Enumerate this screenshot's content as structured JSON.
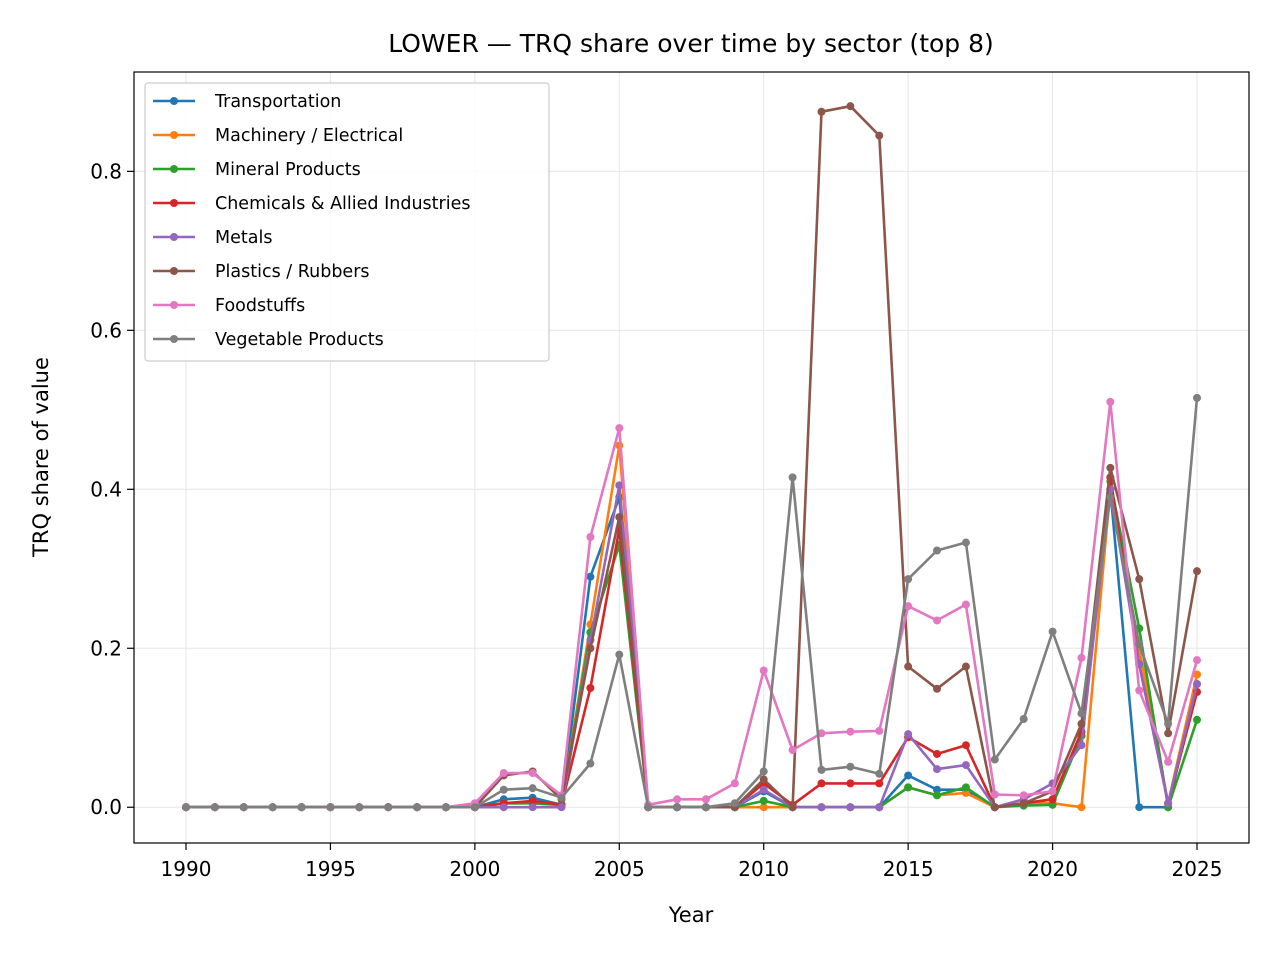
{
  "chart_data": {
    "type": "line",
    "title": "LOWER — TRQ share over time by sector (top 8)",
    "xlabel": "Year",
    "ylabel": "TRQ share of value",
    "xlim": [
      1988.2,
      1926.8
    ],
    "ylim": [
      -0.045,
      0.925
    ],
    "xticks": [
      1990,
      1995,
      2000,
      2005,
      2010,
      2015,
      2020,
      2025
    ],
    "xtick_labels": [
      "1990",
      "1995",
      "2000",
      "2005",
      "2010",
      "2015",
      "2020",
      "2025"
    ],
    "yticks": [
      0.0,
      0.2,
      0.4,
      0.6,
      0.8
    ],
    "ytick_labels": [
      "0.0",
      "0.2",
      "0.4",
      "0.6",
      "0.8"
    ],
    "grid": true,
    "legend_position": "top-left",
    "x": [
      1990,
      1991,
      1992,
      1993,
      1994,
      1995,
      1996,
      1997,
      1998,
      1999,
      2000,
      2001,
      2002,
      2003,
      2004,
      2005,
      2006,
      2007,
      2008,
      2009,
      2010,
      2011,
      2012,
      2013,
      2014,
      2015,
      2016,
      2017,
      2018,
      2019,
      2020,
      2021,
      2022,
      2023,
      2024,
      2025
    ],
    "series": [
      {
        "name": "Transportation",
        "color": "#1f77b4",
        "values": [
          0,
          0,
          0,
          0,
          0,
          0,
          0,
          0,
          0,
          0,
          0,
          0.01,
          0.012,
          0.003,
          0.29,
          0.39,
          0,
          0,
          0,
          0,
          0.02,
          0,
          0,
          0,
          0,
          0.04,
          0.022,
          0.022,
          0,
          0.005,
          0.01,
          0.09,
          0.4,
          0,
          0,
          0.155
        ]
      },
      {
        "name": "Machinery / Electrical",
        "color": "#ff7f0e",
        "values": [
          0,
          0,
          0,
          0,
          0,
          0,
          0,
          0,
          0,
          0,
          0,
          0.005,
          0.005,
          0.003,
          0.23,
          0.455,
          0,
          0,
          0,
          0,
          0,
          0,
          0,
          0,
          0,
          0.025,
          0.015,
          0.018,
          0,
          0.005,
          0.005,
          0,
          0.4,
          0.2,
          0.005,
          0.167
        ]
      },
      {
        "name": "Mineral Products",
        "color": "#2ca02c",
        "values": [
          0,
          0,
          0,
          0,
          0,
          0,
          0,
          0,
          0,
          0,
          0,
          0.005,
          0.005,
          0.003,
          0.22,
          0.33,
          0,
          0,
          0,
          0,
          0.008,
          0,
          0,
          0,
          0,
          0.025,
          0.015,
          0.025,
          0,
          0.002,
          0.003,
          0.09,
          0.41,
          0.225,
          0,
          0.11
        ]
      },
      {
        "name": "Chemicals & Allied Industries",
        "color": "#d62728",
        "values": [
          0,
          0,
          0,
          0,
          0,
          0,
          0,
          0,
          0,
          0,
          0,
          0.005,
          0.008,
          0.003,
          0.15,
          0.35,
          0,
          0,
          0,
          0,
          0.03,
          0.003,
          0.03,
          0.03,
          0.03,
          0.088,
          0.067,
          0.078,
          0,
          0.005,
          0.01,
          0.095,
          0.415,
          0.18,
          0.005,
          0.145
        ]
      },
      {
        "name": "Metals",
        "color": "#9467bd",
        "values": [
          0,
          0,
          0,
          0,
          0,
          0,
          0,
          0,
          0,
          0,
          0,
          0,
          0,
          0,
          0.21,
          0.405,
          0,
          0,
          0,
          0,
          0.022,
          0,
          0,
          0,
          0,
          0.092,
          0.048,
          0.053,
          0,
          0.01,
          0.03,
          0.078,
          0.4,
          0.18,
          0.005,
          0.155
        ]
      },
      {
        "name": "Plastics / Rubbers",
        "color": "#8c564b",
        "values": [
          0,
          0,
          0,
          0,
          0,
          0,
          0,
          0,
          0,
          0,
          0,
          0.04,
          0.045,
          0.01,
          0.2,
          0.365,
          0,
          0,
          0,
          0,
          0.035,
          0,
          0.875,
          0.882,
          0.845,
          0.177,
          0.149,
          0.177,
          0,
          0.005,
          0.02,
          0.105,
          0.427,
          0.287,
          0.093,
          0.297
        ]
      },
      {
        "name": "Foodstuffs",
        "color": "#e377c2",
        "values": [
          0,
          0,
          0,
          0,
          0,
          0,
          0,
          0,
          0,
          0,
          0.005,
          0.043,
          0.043,
          0.015,
          0.34,
          0.477,
          0.003,
          0.01,
          0.01,
          0.03,
          0.172,
          0.072,
          0.093,
          0.095,
          0.096,
          0.253,
          0.235,
          0.255,
          0.016,
          0.015,
          0.02,
          0.188,
          0.51,
          0.147,
          0.057,
          0.185
        ]
      },
      {
        "name": "Vegetable Products",
        "color": "#7f7f7f",
        "values": [
          0,
          0,
          0,
          0,
          0,
          0,
          0,
          0,
          0,
          0,
          0,
          0.022,
          0.024,
          0.012,
          0.055,
          0.192,
          0,
          0,
          0,
          0.005,
          0.045,
          0.415,
          0.047,
          0.051,
          0.042,
          0.287,
          0.323,
          0.333,
          0.06,
          0.111,
          0.221,
          0.118,
          0.39,
          0.205,
          0.105,
          0.515
        ]
      }
    ]
  }
}
